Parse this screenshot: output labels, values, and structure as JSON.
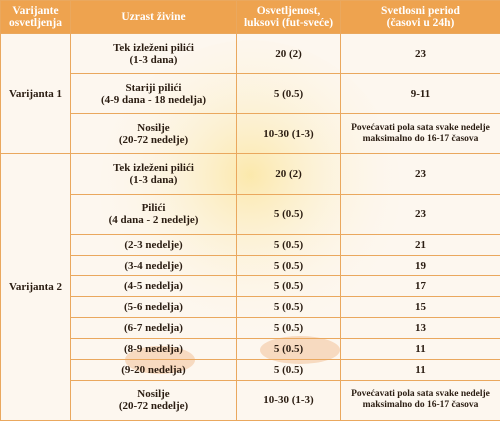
{
  "table": {
    "header": [
      "Varijante\nosvetljenja",
      "Uzrast živine",
      "Osvetljenost,\nluksovi (fut-sveće)",
      "Svetlosni period\n(časovi u 24h)"
    ],
    "groups": [
      {
        "label": "Varijanta 1",
        "rows": [
          [
            "Tek izleženi pilići\n(1-3 dana)",
            "20 (2)",
            "23"
          ],
          [
            "Stariji pilići\n(4-9 dana - 18 nedelja)",
            "5 (0.5)",
            "9-11"
          ],
          [
            "Nosilje\n(20-72 nedelje)",
            "10-30 (1-3)",
            "Povećavati pola sata svake nedelje\nmaksimalno do 16-17 časova"
          ]
        ]
      },
      {
        "label": "Varijanta 2",
        "rows": [
          [
            "Tek izleženi pilići\n(1-3 dana)",
            "20 (2)",
            "23"
          ],
          [
            "Pilići\n(4 dana - 2 nedelje)",
            "5 (0.5)",
            "23"
          ],
          [
            "(2-3 nedelje)",
            "5 (0.5)",
            "21"
          ],
          [
            "(3-4 nedelje)",
            "5 (0.5)",
            "19"
          ],
          [
            "(4-5 nedelja)",
            "5 (0.5)",
            "17"
          ],
          [
            "(5-6 nedelja)",
            "5 (0.5)",
            "15"
          ],
          [
            "(6-7 nedelja)",
            "5 (0.5)",
            "13"
          ],
          [
            "(8-9 nedelja)",
            "5 (0.5)",
            "11"
          ],
          [
            "(9-20 nedelja)",
            "5 (0.5)",
            "11"
          ],
          [
            "Nosilje\n(20-72 nedelje)",
            "10-30 (1-3)",
            "Povećavati pola sata svake nedelje\nmaksimalno do 16-17 časova"
          ]
        ]
      }
    ]
  }
}
